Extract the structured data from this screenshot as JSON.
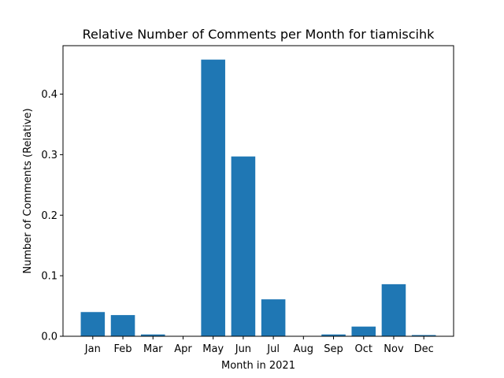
{
  "chart_data": {
    "type": "bar",
    "title": "Relative Number of Comments per Month for tiamiscihk",
    "xlabel": "Month in 2021",
    "ylabel": "Number of Comments (Relative)",
    "categories": [
      "Jan",
      "Feb",
      "Mar",
      "Apr",
      "May",
      "Jun",
      "Jul",
      "Aug",
      "Sep",
      "Oct",
      "Nov",
      "Dec"
    ],
    "values": [
      0.04,
      0.035,
      0.003,
      0.0,
      0.457,
      0.297,
      0.061,
      0.0,
      0.003,
      0.016,
      0.086,
      0.002
    ],
    "ylim": [
      0,
      0.48
    ],
    "yticks": [
      0.0,
      0.1,
      0.2,
      0.3,
      0.4
    ],
    "ytick_labels": [
      "0.0",
      "0.1",
      "0.2",
      "0.3",
      "0.4"
    ],
    "bar_color": "#1f77b4",
    "grid": false,
    "legend": "none"
  }
}
